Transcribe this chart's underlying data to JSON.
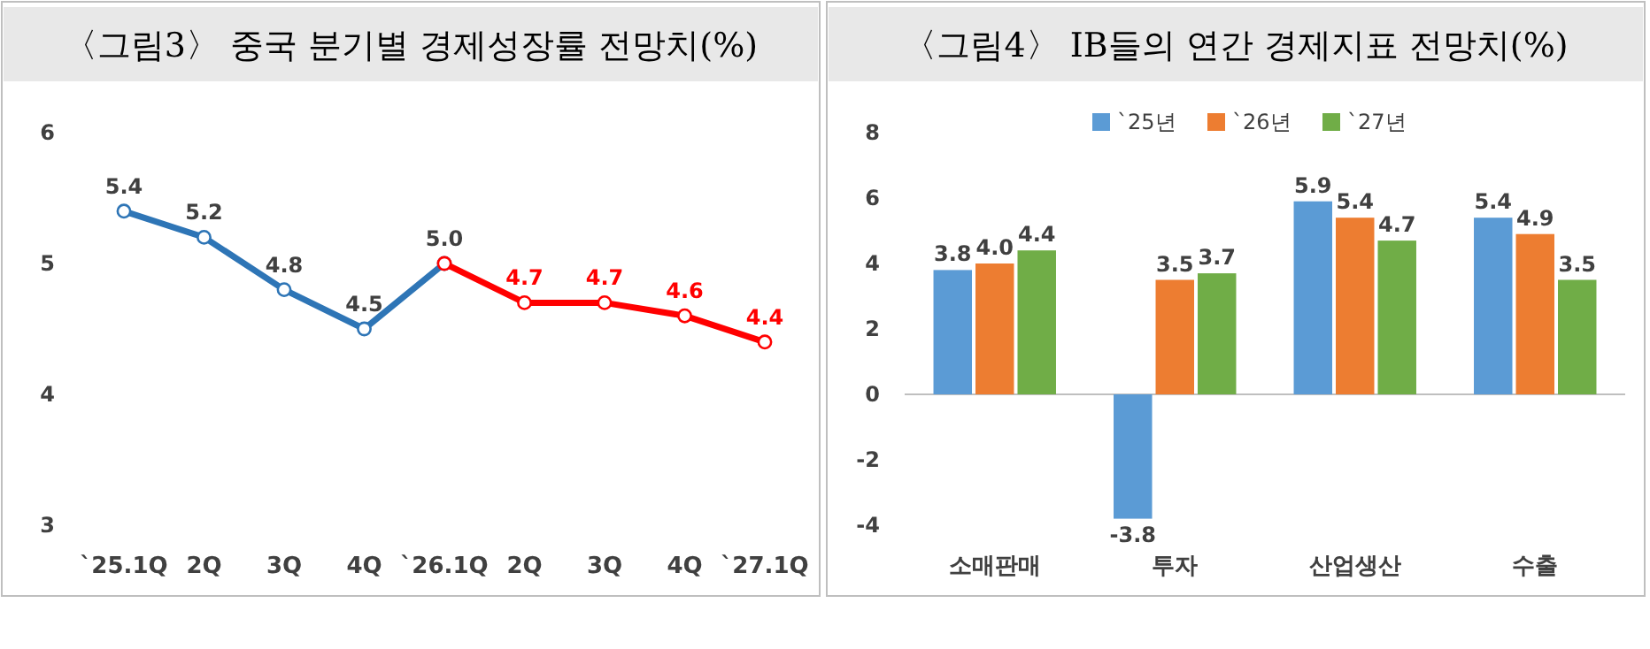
{
  "chart_data": [
    {
      "type": "line",
      "title": "〈그림3〉 중국 분기별 경제성장률 전망치(%)",
      "categories": [
        "`25.1Q",
        "2Q",
        "3Q",
        "4Q",
        "`26.1Q",
        "2Q",
        "3Q",
        "4Q",
        "`27.1Q"
      ],
      "series": [
        {
          "color": "#2e75b6",
          "values": [
            5.4,
            5.2,
            4.8,
            4.5,
            5.0,
            null,
            null,
            null,
            null
          ],
          "value_labels": [
            "5.4",
            "5.2",
            "4.8",
            "4.5",
            "5.0",
            null,
            null,
            null,
            null
          ]
        },
        {
          "color": "#ff0000",
          "values": [
            null,
            null,
            null,
            null,
            5.0,
            4.7,
            4.7,
            4.6,
            4.4
          ],
          "value_labels": [
            null,
            null,
            null,
            null,
            null,
            "4.7",
            "4.7",
            "4.6",
            "4.4"
          ]
        }
      ],
      "ylim": [
        3,
        6
      ],
      "yticks": [
        3,
        4,
        5,
        6
      ],
      "marker": "circle"
    },
    {
      "type": "bar",
      "title": "〈그림4〉 IB들의 연간 경제지표 전망치(%)",
      "categories": [
        "소매판매",
        "투자",
        "산업생산",
        "수출"
      ],
      "series": [
        {
          "name": "`25년",
          "color": "#5b9bd5",
          "values": [
            3.8,
            -3.8,
            5.9,
            5.4
          ],
          "value_labels": [
            "3.8",
            "-3.8",
            "5.9",
            "5.4"
          ]
        },
        {
          "name": "`26년",
          "color": "#ed7d31",
          "values": [
            4.0,
            3.5,
            5.4,
            4.9
          ],
          "value_labels": [
            "4.0",
            "3.5",
            "5.4",
            "4.9"
          ]
        },
        {
          "name": "`27년",
          "color": "#70ad47",
          "values": [
            4.4,
            3.7,
            4.7,
            3.5
          ],
          "value_labels": [
            "4.4",
            "3.7",
            "4.7",
            "3.5"
          ]
        }
      ],
      "ylim": [
        -4,
        8
      ],
      "yticks": [
        -4,
        -2,
        0,
        2,
        4,
        6,
        8
      ],
      "legend": "top"
    }
  ]
}
